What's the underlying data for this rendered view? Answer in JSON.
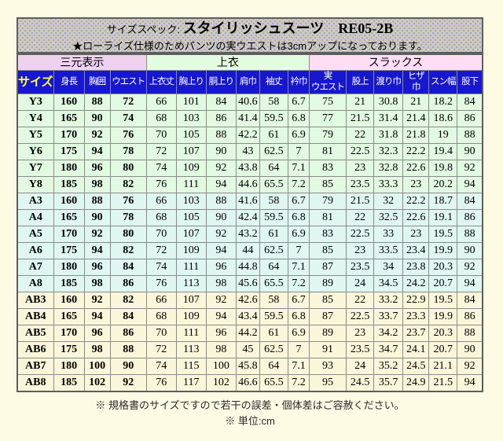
{
  "title": {
    "prefix": "サイズスペック:",
    "main": "スタイリッシュスーツ　RE05-2B",
    "note": "★ローライズ仕様のためパンツの実ウエストは3cmアップになっております。"
  },
  "colors": {
    "page_bg": "#fdfbe4",
    "title_box_bg": "#cbcbcb",
    "header_bg": "#1717cd",
    "header_text": "#ffffff",
    "size_header_text": "#ffff42",
    "group_three_measure": "#e9c2e9",
    "group_jacket": "#d8fbd8",
    "group_slacks": "#ffd2f0",
    "band_Y": "#d8f7d8",
    "band_A": "#d5f3ea",
    "band_AB": "#f9f2cd"
  },
  "table": {
    "groups": [
      {
        "key": "three-measure",
        "label": "三元表示",
        "span": 4,
        "color": "#e9c2e9"
      },
      {
        "key": "jacket",
        "label": "上衣",
        "span": 6,
        "color": "#d8fbd8"
      },
      {
        "key": "slacks",
        "label": "スラックス",
        "span": 6,
        "color": "#ffd2f0"
      }
    ],
    "columns": [
      {
        "key": "size",
        "label": "サイズ"
      },
      {
        "key": "height",
        "label": "身長"
      },
      {
        "key": "chest",
        "label": "胸囲"
      },
      {
        "key": "waist",
        "label": "ウエスト"
      },
      {
        "key": "jacket-length",
        "label": "上衣丈"
      },
      {
        "key": "chest-raise",
        "label": "胸上り"
      },
      {
        "key": "body-raise",
        "label": "胴上り"
      },
      {
        "key": "shoulder-width",
        "label": "肩巾"
      },
      {
        "key": "sleeve-length",
        "label": "袖丈"
      },
      {
        "key": "collar-width",
        "label": "衿巾"
      },
      {
        "key": "actual-waist",
        "label": "実\nウエスト"
      },
      {
        "key": "rise",
        "label": "股上"
      },
      {
        "key": "thigh-width",
        "label": "渡り巾"
      },
      {
        "key": "knee-width",
        "label": "ヒザ\n巾"
      },
      {
        "key": "hem-width",
        "label": "スン幅"
      },
      {
        "key": "inseam",
        "label": "股下"
      }
    ],
    "bold_value_columns": 3,
    "rows": [
      {
        "size": "Y3",
        "band": "Y",
        "values": [
          "160",
          "88",
          "72",
          "66",
          "101",
          "84",
          "40.6",
          "58",
          "6.7",
          "75",
          "21",
          "30.8",
          "21",
          "18.2",
          "84"
        ]
      },
      {
        "size": "Y4",
        "band": "Y",
        "values": [
          "165",
          "90",
          "74",
          "68",
          "103",
          "86",
          "41.4",
          "59.5",
          "6.8",
          "77",
          "21.5",
          "31.4",
          "21.4",
          "18.6",
          "86"
        ]
      },
      {
        "size": "Y5",
        "band": "Y",
        "values": [
          "170",
          "92",
          "76",
          "70",
          "105",
          "88",
          "42.2",
          "61",
          "6.9",
          "79",
          "22",
          "31.8",
          "21.8",
          "19",
          "88"
        ]
      },
      {
        "size": "Y6",
        "band": "Y",
        "values": [
          "175",
          "94",
          "78",
          "72",
          "107",
          "90",
          "43",
          "62.5",
          "7",
          "81",
          "22.5",
          "32.3",
          "22.2",
          "19.4",
          "90"
        ]
      },
      {
        "size": "Y7",
        "band": "Y",
        "values": [
          "180",
          "96",
          "80",
          "74",
          "109",
          "92",
          "43.8",
          "64",
          "7.1",
          "83",
          "23",
          "32.8",
          "22.6",
          "19.8",
          "92"
        ]
      },
      {
        "size": "Y8",
        "band": "Y",
        "values": [
          "185",
          "98",
          "82",
          "76",
          "111",
          "94",
          "44.6",
          "65.5",
          "7.2",
          "85",
          "23.5",
          "33.3",
          "23",
          "20.2",
          "94"
        ]
      },
      {
        "size": "A3",
        "band": "A",
        "values": [
          "160",
          "88",
          "76",
          "66",
          "103",
          "88",
          "41.6",
          "58",
          "6.7",
          "79",
          "21.5",
          "32",
          "22.2",
          "18.7",
          "84"
        ]
      },
      {
        "size": "A4",
        "band": "A",
        "values": [
          "165",
          "90",
          "78",
          "68",
          "105",
          "90",
          "42.4",
          "59.5",
          "6.8",
          "81",
          "22",
          "32.5",
          "22.6",
          "19.1",
          "86"
        ]
      },
      {
        "size": "A5",
        "band": "A",
        "values": [
          "170",
          "92",
          "80",
          "70",
          "107",
          "92",
          "43.2",
          "61",
          "6.9",
          "83",
          "22.5",
          "33",
          "23",
          "19.5",
          "88"
        ]
      },
      {
        "size": "A6",
        "band": "A",
        "values": [
          "175",
          "94",
          "82",
          "72",
          "109",
          "94",
          "44",
          "62.5",
          "7",
          "85",
          "23",
          "33.5",
          "23.4",
          "19.9",
          "90"
        ]
      },
      {
        "size": "A7",
        "band": "A",
        "values": [
          "180",
          "96",
          "84",
          "74",
          "111",
          "96",
          "44.8",
          "64",
          "7.1",
          "87",
          "23.5",
          "34",
          "23.8",
          "20.3",
          "92"
        ]
      },
      {
        "size": "A8",
        "band": "A",
        "values": [
          "185",
          "98",
          "86",
          "76",
          "113",
          "98",
          "45.6",
          "65.5",
          "7.2",
          "89",
          "24",
          "34.5",
          "24.2",
          "20.7",
          "94"
        ]
      },
      {
        "size": "AB3",
        "band": "AB",
        "values": [
          "160",
          "92",
          "82",
          "66",
          "107",
          "92",
          "42.6",
          "58",
          "6.7",
          "85",
          "22",
          "33.2",
          "22.9",
          "19.5",
          "84"
        ]
      },
      {
        "size": "AB4",
        "band": "AB",
        "values": [
          "165",
          "94",
          "84",
          "68",
          "109",
          "94",
          "43.4",
          "59.5",
          "6.8",
          "87",
          "22.5",
          "33.7",
          "23.3",
          "19.9",
          "86"
        ]
      },
      {
        "size": "AB5",
        "band": "AB",
        "values": [
          "170",
          "96",
          "86",
          "70",
          "111",
          "96",
          "44.2",
          "61",
          "6.9",
          "89",
          "23",
          "34.2",
          "23.7",
          "20.3",
          "88"
        ]
      },
      {
        "size": "AB6",
        "band": "AB",
        "values": [
          "175",
          "98",
          "88",
          "72",
          "113",
          "98",
          "45",
          "62.5",
          "7",
          "91",
          "23.5",
          "34.7",
          "24.1",
          "20.7",
          "90"
        ]
      },
      {
        "size": "AB7",
        "band": "AB",
        "values": [
          "180",
          "100",
          "90",
          "74",
          "115",
          "100",
          "45.8",
          "64",
          "7.1",
          "93",
          "24",
          "35.2",
          "24.5",
          "21.1",
          "92"
        ]
      },
      {
        "size": "AB8",
        "band": "AB",
        "values": [
          "185",
          "102",
          "92",
          "76",
          "117",
          "102",
          "46.6",
          "65.5",
          "7.2",
          "95",
          "24.5",
          "35.7",
          "24.9",
          "21.5",
          "94"
        ]
      }
    ]
  },
  "footer": {
    "line1": "※ 規格書のサイズですので若干の誤差・個体差はご容赦ください。",
    "line2": "※ 単位:cm"
  }
}
